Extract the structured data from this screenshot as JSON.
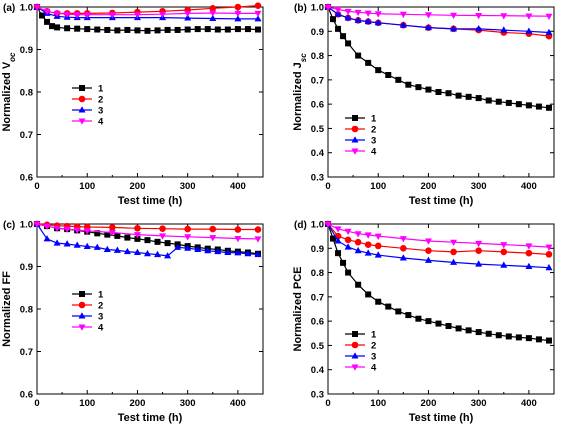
{
  "colors": {
    "1": "#000000",
    "2": "#ff0000",
    "3": "#0000ff",
    "4": "#ff00ff"
  },
  "markers": {
    "1": "square",
    "2": "circle",
    "3": "triangle-up",
    "4": "triangle-down"
  },
  "chart_data": [
    {
      "panel_label": "(a)",
      "type": "line",
      "title": "",
      "xlabel": "Test time (h)",
      "ylabel_parts": [
        "Normalized V",
        "oc"
      ],
      "xlim": [
        0,
        450
      ],
      "ylim": [
        0.6,
        1.0
      ],
      "xticks": [
        "0",
        "100",
        "200",
        "300",
        "400"
      ],
      "yticks": [
        "0.6",
        "0.7",
        "0.8",
        "0.9",
        "1.0"
      ],
      "legend_position": "center-left",
      "series": [
        {
          "name": "1",
          "x": [
            0,
            10,
            20,
            30,
            40,
            60,
            80,
            100,
            120,
            140,
            160,
            180,
            200,
            220,
            240,
            260,
            280,
            300,
            320,
            340,
            360,
            380,
            400,
            420,
            440
          ],
          "values": [
            1.0,
            0.98,
            0.965,
            0.955,
            0.952,
            0.95,
            0.949,
            0.948,
            0.947,
            0.946,
            0.945,
            0.946,
            0.945,
            0.944,
            0.945,
            0.946,
            0.946,
            0.947,
            0.948,
            0.948,
            0.947,
            0.947,
            0.948,
            0.948,
            0.947
          ]
        },
        {
          "name": "2",
          "x": [
            0,
            20,
            40,
            60,
            80,
            100,
            150,
            200,
            250,
            300,
            350,
            400,
            440
          ],
          "values": [
            1.0,
            0.99,
            0.985,
            0.985,
            0.985,
            0.985,
            0.986,
            0.988,
            0.99,
            0.993,
            0.997,
            1.0,
            1.003
          ]
        },
        {
          "name": "3",
          "x": [
            0,
            20,
            40,
            60,
            80,
            100,
            150,
            200,
            250,
            300,
            350,
            400,
            440
          ],
          "values": [
            1.0,
            0.985,
            0.978,
            0.976,
            0.975,
            0.975,
            0.975,
            0.975,
            0.975,
            0.974,
            0.973,
            0.972,
            0.972
          ]
        },
        {
          "name": "4",
          "x": [
            0,
            20,
            40,
            60,
            80,
            100,
            150,
            200,
            250,
            300,
            350,
            400,
            440
          ],
          "values": [
            1.0,
            0.99,
            0.985,
            0.983,
            0.982,
            0.982,
            0.982,
            0.982,
            0.983,
            0.985,
            0.986,
            0.985,
            0.985
          ]
        }
      ]
    },
    {
      "panel_label": "(b)",
      "type": "line",
      "title": "",
      "xlabel": "Test time (h)",
      "ylabel_parts": [
        "Normalized J",
        "sc"
      ],
      "xlim": [
        0,
        450
      ],
      "ylim": [
        0.3,
        1.0
      ],
      "xticks": [
        "0",
        "100",
        "200",
        "300",
        "400"
      ],
      "yticks": [
        "0.3",
        "0.4",
        "0.5",
        "0.6",
        "0.7",
        "0.8",
        "0.9",
        "1.0"
      ],
      "legend_position": "center-left",
      "series": [
        {
          "name": "1",
          "x": [
            0,
            10,
            20,
            30,
            40,
            60,
            80,
            100,
            120,
            140,
            160,
            180,
            200,
            220,
            240,
            260,
            280,
            300,
            320,
            340,
            360,
            380,
            400,
            420,
            440
          ],
          "values": [
            1.0,
            0.95,
            0.91,
            0.88,
            0.85,
            0.8,
            0.77,
            0.74,
            0.72,
            0.7,
            0.68,
            0.67,
            0.66,
            0.65,
            0.645,
            0.635,
            0.63,
            0.625,
            0.615,
            0.61,
            0.605,
            0.6,
            0.595,
            0.59,
            0.585
          ]
        },
        {
          "name": "2",
          "x": [
            0,
            20,
            40,
            60,
            80,
            100,
            150,
            200,
            250,
            300,
            350,
            400,
            440
          ],
          "values": [
            1.0,
            0.97,
            0.955,
            0.945,
            0.94,
            0.935,
            0.925,
            0.915,
            0.91,
            0.905,
            0.895,
            0.89,
            0.88
          ]
        },
        {
          "name": "3",
          "x": [
            0,
            20,
            40,
            60,
            80,
            100,
            150,
            200,
            250,
            300,
            350,
            400,
            440
          ],
          "values": [
            1.0,
            0.97,
            0.955,
            0.945,
            0.94,
            0.935,
            0.925,
            0.915,
            0.91,
            0.91,
            0.905,
            0.9,
            0.895
          ]
        },
        {
          "name": "4",
          "x": [
            0,
            20,
            40,
            60,
            80,
            100,
            150,
            200,
            250,
            300,
            350,
            400,
            440
          ],
          "values": [
            1.0,
            0.99,
            0.982,
            0.978,
            0.975,
            0.972,
            0.97,
            0.968,
            0.966,
            0.965,
            0.964,
            0.963,
            0.962
          ]
        }
      ]
    },
    {
      "panel_label": "(c)",
      "type": "line",
      "title": "",
      "xlabel": "Test time (h)",
      "ylabel_parts": [
        "Normalized FF",
        ""
      ],
      "xlim": [
        0,
        450
      ],
      "ylim": [
        0.6,
        1.0
      ],
      "xticks": [
        "0",
        "100",
        "200",
        "300",
        "400"
      ],
      "yticks": [
        "0.6",
        "0.7",
        "0.8",
        "0.9",
        "1.0"
      ],
      "legend_position": "center-left",
      "series": [
        {
          "name": "1",
          "x": [
            0,
            20,
            40,
            60,
            80,
            100,
            120,
            140,
            160,
            180,
            200,
            220,
            240,
            260,
            280,
            300,
            320,
            340,
            360,
            380,
            400,
            420,
            440
          ],
          "values": [
            1.0,
            0.995,
            0.99,
            0.988,
            0.985,
            0.982,
            0.978,
            0.975,
            0.972,
            0.968,
            0.965,
            0.962,
            0.958,
            0.955,
            0.952,
            0.948,
            0.945,
            0.942,
            0.94,
            0.937,
            0.935,
            0.933,
            0.93
          ]
        },
        {
          "name": "2",
          "x": [
            0,
            20,
            40,
            60,
            80,
            100,
            150,
            200,
            250,
            300,
            350,
            400,
            440
          ],
          "values": [
            1.0,
            0.998,
            0.996,
            0.995,
            0.994,
            0.993,
            0.992,
            0.99,
            0.989,
            0.988,
            0.988,
            0.987,
            0.987
          ]
        },
        {
          "name": "3",
          "x": [
            0,
            20,
            40,
            60,
            80,
            100,
            120,
            140,
            160,
            180,
            200,
            220,
            240,
            260,
            280,
            300,
            320,
            340,
            360,
            380,
            400,
            420,
            440
          ],
          "values": [
            1.0,
            0.965,
            0.955,
            0.953,
            0.95,
            0.947,
            0.945,
            0.94,
            0.938,
            0.935,
            0.933,
            0.93,
            0.928,
            0.925,
            0.945,
            0.943,
            0.94,
            0.937,
            0.935,
            0.933,
            0.932,
            0.93,
            0.928
          ]
        },
        {
          "name": "4",
          "x": [
            0,
            20,
            40,
            60,
            80,
            100,
            150,
            200,
            250,
            300,
            350,
            400,
            440
          ],
          "values": [
            1.0,
            0.995,
            0.99,
            0.988,
            0.986,
            0.984,
            0.98,
            0.975,
            0.972,
            0.97,
            0.968,
            0.966,
            0.965
          ]
        }
      ]
    },
    {
      "panel_label": "(d)",
      "type": "line",
      "title": "",
      "xlabel": "Test time (h)",
      "ylabel_parts": [
        "Normalized PCE",
        ""
      ],
      "xlim": [
        0,
        450
      ],
      "ylim": [
        0.3,
        1.0
      ],
      "xticks": [
        "0",
        "100",
        "200",
        "300",
        "400"
      ],
      "yticks": [
        "0.3",
        "0.4",
        "0.5",
        "0.6",
        "0.7",
        "0.8",
        "0.9",
        "1.0"
      ],
      "legend_position": "bottom-left",
      "series": [
        {
          "name": "1",
          "x": [
            0,
            10,
            20,
            30,
            40,
            60,
            80,
            100,
            120,
            140,
            160,
            180,
            200,
            220,
            240,
            260,
            280,
            300,
            320,
            340,
            360,
            380,
            400,
            420,
            440
          ],
          "values": [
            1.0,
            0.94,
            0.88,
            0.84,
            0.8,
            0.75,
            0.71,
            0.68,
            0.66,
            0.64,
            0.625,
            0.61,
            0.6,
            0.59,
            0.58,
            0.57,
            0.562,
            0.555,
            0.548,
            0.542,
            0.537,
            0.533,
            0.53,
            0.525,
            0.52
          ]
        },
        {
          "name": "2",
          "x": [
            0,
            20,
            40,
            60,
            80,
            100,
            150,
            200,
            250,
            300,
            350,
            400,
            440
          ],
          "values": [
            1.0,
            0.95,
            0.935,
            0.925,
            0.915,
            0.91,
            0.9,
            0.89,
            0.885,
            0.89,
            0.885,
            0.88,
            0.875
          ]
        },
        {
          "name": "3",
          "x": [
            0,
            20,
            40,
            60,
            80,
            100,
            150,
            200,
            250,
            300,
            350,
            400,
            440
          ],
          "values": [
            1.0,
            0.93,
            0.905,
            0.89,
            0.88,
            0.872,
            0.86,
            0.85,
            0.842,
            0.835,
            0.83,
            0.825,
            0.82
          ]
        },
        {
          "name": "4",
          "x": [
            0,
            20,
            40,
            60,
            80,
            100,
            150,
            200,
            250,
            300,
            350,
            400,
            440
          ],
          "values": [
            1.0,
            0.98,
            0.97,
            0.96,
            0.955,
            0.95,
            0.94,
            0.93,
            0.925,
            0.92,
            0.915,
            0.91,
            0.905
          ]
        }
      ]
    }
  ]
}
